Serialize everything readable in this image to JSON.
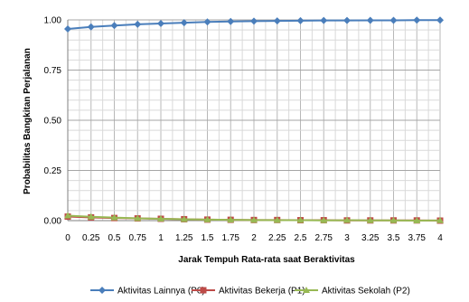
{
  "chart_data": {
    "type": "line",
    "xlabel": "Jarak Tempuh Rata-rata saat Beraktivitas",
    "ylabel": "Probabilitas Bangkitan Perjalanan",
    "x": [
      0,
      0.25,
      0.5,
      0.75,
      1,
      1.25,
      1.5,
      1.75,
      2,
      2.25,
      2.5,
      2.75,
      3,
      3.25,
      3.5,
      3.75,
      4
    ],
    "x_tick_labels": [
      "0",
      "0.25",
      "0.5",
      "0.75",
      "1",
      "1.25",
      "1.5",
      "1.75",
      "2",
      "2.25",
      "2.5",
      "2.75",
      "3",
      "3.25",
      "3.5",
      "3.75",
      "4"
    ],
    "y_tick_labels": [
      "0.00",
      "0.25",
      "0.50",
      "0.75",
      "1.00"
    ],
    "ylim": [
      0,
      1
    ],
    "grid": true,
    "legend_position": "bottom",
    "series": [
      {
        "name": "Aktivitas Lainnya (P0)",
        "color": "#4a7ebb",
        "marker": "diamond",
        "values": [
          0.955,
          0.965,
          0.972,
          0.978,
          0.982,
          0.986,
          0.99,
          0.992,
          0.994,
          0.995,
          0.996,
          0.997,
          0.997,
          0.998,
          0.998,
          0.999,
          0.999
        ]
      },
      {
        "name": "Aktivitas Bekerja (P1)",
        "color": "#be4b48",
        "marker": "square",
        "values": [
          0.02,
          0.016,
          0.013,
          0.011,
          0.009,
          0.007,
          0.005,
          0.004,
          0.003,
          0.003,
          0.002,
          0.002,
          0.001,
          0.001,
          0.001,
          0.001,
          0.0
        ]
      },
      {
        "name": "Aktivitas Sekolah (P2)",
        "color": "#98b954",
        "marker": "triangle",
        "values": [
          0.025,
          0.019,
          0.015,
          0.011,
          0.009,
          0.007,
          0.005,
          0.004,
          0.003,
          0.002,
          0.002,
          0.001,
          0.002,
          0.001,
          0.001,
          0.0,
          0.001
        ]
      }
    ]
  }
}
